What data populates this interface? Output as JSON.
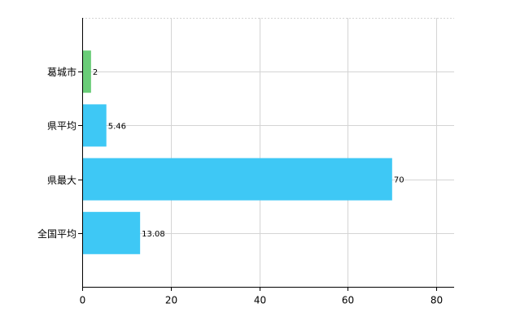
{
  "chart_data": {
    "type": "hbar",
    "categories": [
      "葛城市",
      "県平均",
      "県最大",
      "全国平均"
    ],
    "values": [
      2,
      5.46,
      70,
      13.08
    ],
    "colors": [
      "#6acd78",
      "#3ec8f5",
      "#3ec8f5",
      "#3ec8f5"
    ],
    "xlim": [
      0,
      84
    ],
    "xticks": [
      0,
      20,
      40,
      60,
      80
    ],
    "grid": true
  }
}
